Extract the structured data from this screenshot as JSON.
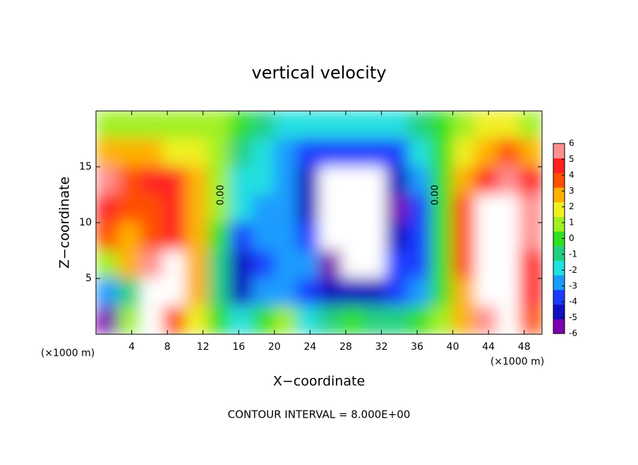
{
  "chart_data": {
    "type": "contourf",
    "title": "vertical velocity",
    "x_label": "X−coordinate",
    "y_label": "Z−coordinate",
    "x_unit": "(×1000 m)",
    "y_unit": "(×1000 m)",
    "footer": "CONTOUR INTERVAL = 8.000E+00",
    "contour_labels": [
      "0.00",
      "0.00"
    ],
    "xlim": [
      0,
      50
    ],
    "ylim": [
      0,
      20
    ],
    "xticks": [
      4,
      8,
      12,
      16,
      20,
      24,
      28,
      32,
      36,
      40,
      44,
      48
    ],
    "yticks": [
      5,
      10,
      15
    ],
    "x": [
      1.25,
      3.75,
      6.25,
      8.75,
      11.25,
      13.75,
      16.25,
      18.75,
      21.25,
      23.75,
      26.25,
      28.75,
      31.25,
      33.75,
      36.25,
      38.75,
      41.25,
      43.75,
      46.25,
      48.75
    ],
    "y": [
      18.75,
      16.25,
      13.75,
      11.25,
      8.75,
      6.25,
      3.75,
      1.25
    ],
    "z": [
      [
        1,
        1,
        1,
        1,
        1,
        0.5,
        0,
        -1,
        -2,
        -2,
        -2.5,
        -2.5,
        -2.5,
        -2,
        -1,
        0,
        1,
        1.5,
        1.5,
        1
      ],
      [
        3,
        3,
        2.5,
        2,
        1.5,
        0.5,
        -1,
        -2,
        -3,
        -4,
        -4.5,
        -4.5,
        -4.5,
        -4,
        -2,
        0,
        2,
        3,
        3.5,
        3
      ],
      [
        6,
        4,
        4.5,
        5,
        3,
        1,
        -2,
        -2,
        -3,
        -5,
        -8,
        -8,
        -8,
        -5,
        -3,
        0,
        3,
        5,
        6,
        5
      ],
      [
        5,
        4,
        4,
        5,
        3,
        0.5,
        -2,
        -3,
        -3,
        -5,
        -8,
        -7,
        -8,
        -6,
        -4,
        0,
        4,
        7,
        8,
        6
      ],
      [
        4,
        3,
        4,
        5,
        3,
        0,
        -4,
        -3,
        -3,
        -4,
        -7,
        -8,
        -8,
        -5,
        -4,
        0,
        4,
        8,
        8,
        6
      ],
      [
        1,
        3,
        6,
        7,
        3,
        -1,
        -5,
        -4,
        -3,
        -3,
        -6,
        -8,
        -8,
        -4,
        -4,
        0,
        4,
        8,
        8,
        5
      ],
      [
        -3,
        -1,
        8,
        8,
        3,
        -1,
        -5,
        -3,
        -3,
        -4,
        -5,
        -5,
        -5,
        -4,
        -3,
        0,
        3,
        8,
        8,
        5
      ],
      [
        -6,
        1,
        8,
        4,
        2,
        0,
        -2,
        0,
        1,
        -2,
        -1,
        0,
        -1,
        -1,
        0,
        1,
        3,
        6,
        8,
        4
      ]
    ],
    "colorbar_ticks": [
      -6,
      -5,
      -4,
      -3,
      -2,
      -1,
      0,
      1,
      2,
      3,
      4,
      5,
      6
    ],
    "colors": [
      "#7a00b0",
      "#1010c0",
      "#1a3cff",
      "#1a9cff",
      "#20e0e0",
      "#20d080",
      "#30e020",
      "#a0f020",
      "#f0f020",
      "#ffb000",
      "#ff5000",
      "#ff2020",
      "#ff9090"
    ],
    "over_color": "#ffffff",
    "under_color": "#ffffff"
  }
}
